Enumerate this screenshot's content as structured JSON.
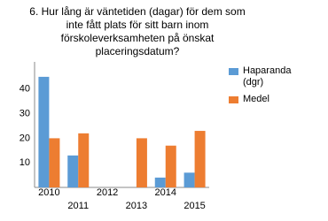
{
  "chart_data": {
    "type": "bar",
    "title": "6. Hur lång är väntetiden (dagar) för dem som inte fått plats för sitt barn inom förskoleverksamheten på önskat placeringsdatum?",
    "categories": [
      "2010",
      "2011",
      "2012",
      "2013",
      "2014",
      "2015"
    ],
    "series": [
      {
        "name": "Haparanda (dgr)",
        "color": "#5b9bd5",
        "values": [
          45,
          13,
          null,
          null,
          4,
          6
        ]
      },
      {
        "name": "Medel",
        "color": "#ed7d31",
        "values": [
          20,
          22,
          null,
          20,
          17,
          23
        ]
      }
    ],
    "ylim": [
      0,
      50
    ],
    "yticks": [
      10,
      20,
      30,
      40
    ],
    "grid": false
  }
}
